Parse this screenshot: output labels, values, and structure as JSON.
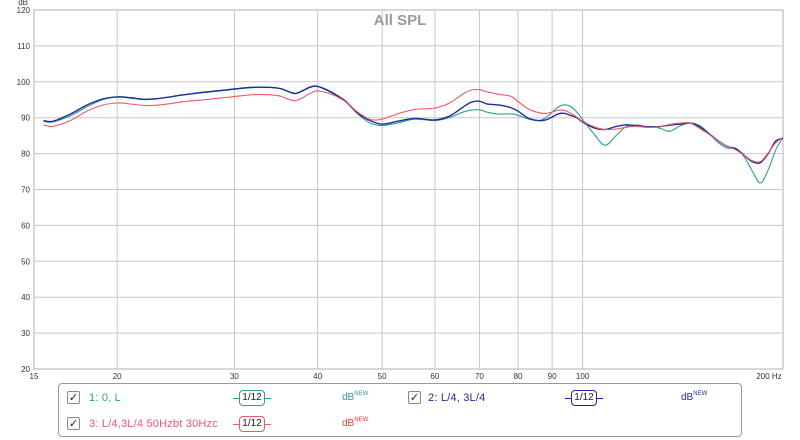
{
  "chart_data": {
    "type": "line",
    "title": "All SPL",
    "ylabel": "dB",
    "x_scale": "log",
    "xlim": [
      15,
      200
    ],
    "ylim": [
      20,
      120
    ],
    "x_ticks": [
      15,
      20,
      30,
      40,
      50,
      60,
      70,
      80,
      90,
      100,
      200
    ],
    "x_tick_labels": [
      "15",
      "20",
      "30",
      "40",
      "50",
      "60",
      "70",
      "80",
      "90",
      "100",
      "200 Hz"
    ],
    "y_ticks": [
      20,
      30,
      40,
      50,
      60,
      70,
      80,
      90,
      100,
      110,
      120
    ],
    "y_tick_labels": [
      "20",
      "30",
      "40",
      "50",
      "60",
      "70",
      "80",
      "90",
      "100",
      "110",
      "120"
    ],
    "grid": true,
    "series": [
      {
        "name": "1: 0, L",
        "color": "#2a9d96",
        "smoothing": "1/12",
        "x": [
          15.5,
          16,
          17,
          18,
          19,
          20,
          21,
          22,
          23,
          24,
          25,
          27,
          29,
          31,
          33,
          35,
          36,
          37,
          38,
          39,
          40,
          42,
          44,
          46,
          48,
          50,
          53,
          56,
          60,
          63,
          66,
          68,
          70,
          72,
          75,
          78,
          80,
          83,
          86,
          88,
          90,
          92,
          94,
          96,
          98,
          100,
          104,
          108,
          112,
          116,
          120,
          125,
          130,
          135,
          140,
          145,
          150,
          155,
          160,
          165,
          170,
          175,
          180,
          185,
          190,
          195,
          200
        ],
        "y": [
          89,
          88.8,
          90.5,
          93,
          95,
          95.8,
          95.6,
          95.2,
          95.3,
          95.8,
          96.3,
          97,
          97.6,
          98.2,
          98.5,
          98.2,
          97.5,
          96.8,
          97.6,
          98.6,
          98.8,
          97.2,
          94.5,
          91,
          88.5,
          87.8,
          88.6,
          89.6,
          89.2,
          90,
          91.5,
          92.1,
          92.2,
          91.5,
          91,
          91.1,
          90.7,
          89.6,
          89.2,
          90,
          91.5,
          93,
          93.6,
          93.1,
          91.6,
          89.5,
          85.5,
          82.3,
          84.8,
          87.4,
          88,
          87.5,
          87.2,
          86.2,
          87.7,
          88.5,
          87.8,
          85.5,
          83,
          81.5,
          81.5,
          79,
          75,
          71.8,
          75.5,
          81,
          84.5
        ]
      },
      {
        "name": "2: L/4, 3L/4",
        "color": "#1f2d9c",
        "smoothing": "1/12",
        "x": [
          15.5,
          16,
          17,
          18,
          19,
          20,
          21,
          22,
          23,
          24,
          25,
          27,
          29,
          31,
          33,
          35,
          36,
          37,
          38,
          39,
          40,
          42,
          44,
          46,
          48,
          50,
          53,
          56,
          60,
          63,
          66,
          68,
          70,
          72,
          75,
          78,
          80,
          83,
          86,
          88,
          90,
          92,
          94,
          96,
          98,
          100,
          104,
          108,
          112,
          116,
          120,
          125,
          130,
          135,
          140,
          145,
          150,
          155,
          160,
          165,
          170,
          175,
          180,
          185,
          190,
          195,
          200
        ],
        "y": [
          89.2,
          89,
          91,
          93.5,
          95.2,
          95.8,
          95.5,
          95.1,
          95.3,
          95.8,
          96.3,
          97.1,
          97.7,
          98.3,
          98.5,
          98.2,
          97.4,
          96.7,
          97.5,
          98.5,
          98.7,
          97,
          94.7,
          91.2,
          89.2,
          88.2,
          89.1,
          89.8,
          89.4,
          90.4,
          92.8,
          94.3,
          94.6,
          93.8,
          93.5,
          92.8,
          91.8,
          89.8,
          89.2,
          89.4,
          90.2,
          91.1,
          91.2,
          90.6,
          90,
          88.8,
          87.2,
          86.7,
          87.5,
          88,
          87.8,
          87.5,
          87.5,
          87.9,
          88.2,
          88.5,
          87.4,
          85.5,
          83.5,
          82,
          81.3,
          79.5,
          77.7,
          77.5,
          80,
          83.5,
          84.2
        ]
      },
      {
        "name": "3: L/4,3L/4 50Hzbt 30Hzc",
        "color": "#ee5a66",
        "smoothing": "1/12",
        "x": [
          15.5,
          16,
          17,
          18,
          19,
          20,
          21,
          22,
          23,
          24,
          25,
          27,
          29,
          31,
          33,
          35,
          36,
          37,
          38,
          39,
          40,
          42,
          44,
          46,
          48,
          50,
          53,
          56,
          60,
          63,
          66,
          68,
          70,
          72,
          75,
          78,
          80,
          83,
          86,
          88,
          90,
          92,
          94,
          96,
          98,
          100,
          104,
          108,
          112,
          116,
          120,
          125,
          130,
          135,
          140,
          145,
          150,
          155,
          160,
          165,
          170,
          175,
          180,
          185,
          190,
          195,
          200
        ],
        "y": [
          88,
          87.6,
          89.2,
          91.8,
          93.5,
          94.1,
          93.8,
          93.4,
          93.5,
          93.9,
          94.4,
          95,
          95.6,
          96.2,
          96.5,
          96.1,
          95.3,
          94.7,
          95.6,
          96.8,
          97.5,
          96.5,
          94.5,
          91.5,
          89.5,
          89.6,
          91.2,
          92.3,
          92.7,
          94,
          96.5,
          97.7,
          97.8,
          97.2,
          96.5,
          96,
          94.5,
          92.4,
          91.4,
          91.2,
          91.6,
          92.1,
          92,
          91.2,
          90.2,
          89,
          87.5,
          86.7,
          86.8,
          87.3,
          87.6,
          87.3,
          87.4,
          88.1,
          88.5,
          88.5,
          87,
          85.3,
          83.5,
          82,
          81,
          79.5,
          78,
          77.8,
          80.2,
          83,
          84.5
        ]
      }
    ]
  },
  "legend": {
    "items": [
      {
        "label": "1: 0, L",
        "smoothing": "1/12",
        "dbnew": "dB",
        "dbnew_sup": "NEW",
        "checked": true
      },
      {
        "label": "2: L/4, 3L/4",
        "smoothing": "1/12",
        "dbnew": "dB",
        "dbnew_sup": "NEW",
        "checked": true
      },
      {
        "label": "3: L/4,3L/4 50Hzbt 30Hzc",
        "smoothing": "1/12",
        "dbnew": "dB",
        "dbnew_sup": "NEW",
        "checked": true
      }
    ]
  }
}
